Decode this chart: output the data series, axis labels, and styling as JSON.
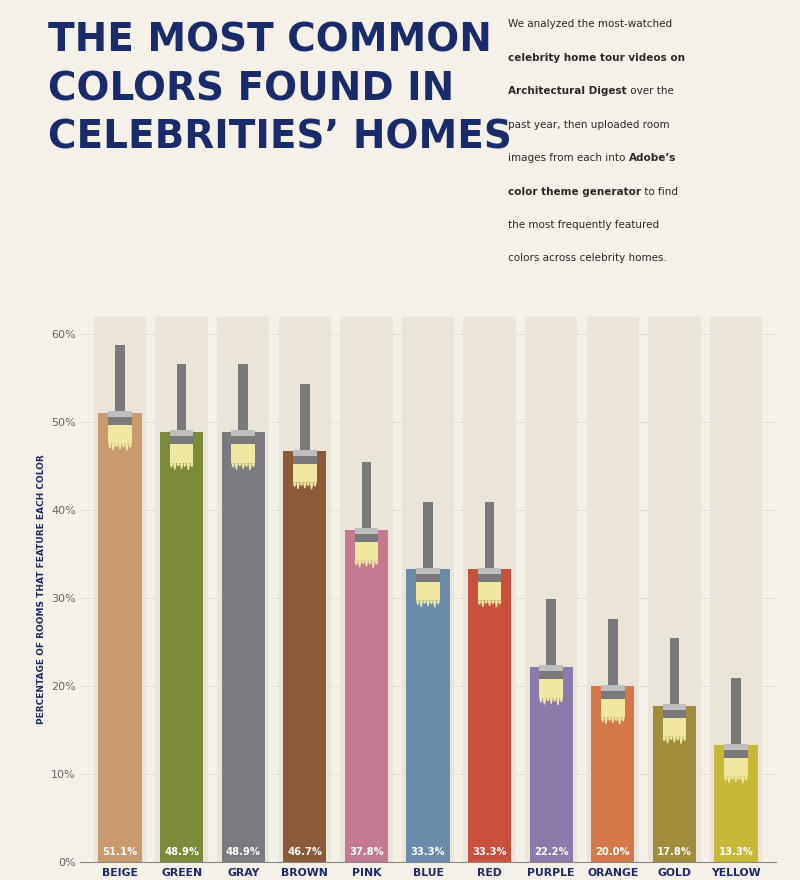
{
  "categories": [
    "BEIGE",
    "GREEN",
    "GRAY",
    "BROWN",
    "PINK",
    "BLUE",
    "RED",
    "PURPLE",
    "ORANGE",
    "GOLD",
    "YELLOW"
  ],
  "values": [
    51.1,
    48.9,
    48.9,
    46.7,
    37.8,
    33.3,
    33.3,
    22.2,
    20.0,
    17.8,
    13.3
  ],
  "bar_colors": [
    "#C89A6E",
    "#7B8B3A",
    "#7A7A80",
    "#8B5A38",
    "#C47A90",
    "#6A8CAA",
    "#C8503C",
    "#8C7AAA",
    "#D4784A",
    "#A08C3A",
    "#C8B838"
  ],
  "background_color": "#F5F0E8",
  "title_line1": "THE MOST COMMON",
  "title_line2": "COLORS FOUND IN",
  "title_line3": "CELEBRITIES’ HOMES",
  "title_color": "#1A2B6B",
  "ylabel": "PERCENTAGE OF ROOMS THAT FEATURE EACH COLOR",
  "ylabel_color": "#1A2B6B",
  "bar_bg_color": "#EAE5D8",
  "brush_handle_dark": "#7A7A7A",
  "brush_ferrule_light": "#BEBEBE",
  "brush_bristle_color": "#F0E8A0",
  "value_label_color": "#FFFFFF",
  "axis_label_color": "#1A2B6B",
  "ytick_values": [
    0,
    10,
    20,
    30,
    40,
    50,
    60
  ],
  "ylim_max": 62
}
